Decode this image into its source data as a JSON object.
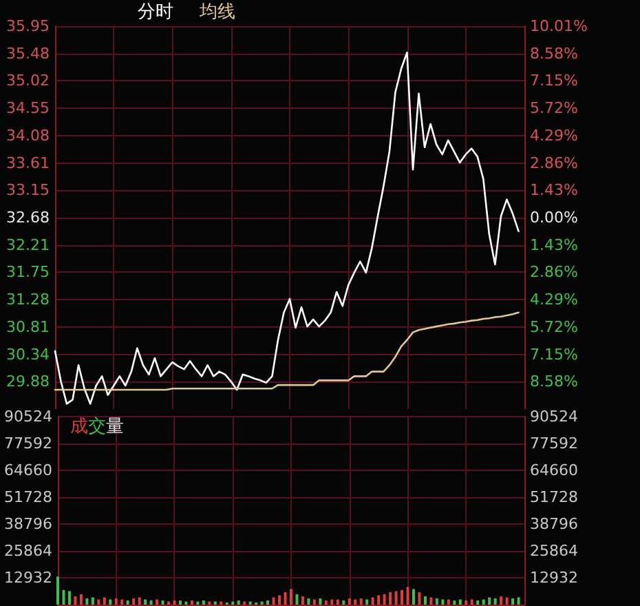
{
  "chart_data": [
    {
      "type": "line",
      "legend": "top left",
      "grid": true,
      "tick_labels": "y",
      "line_style": "solid",
      "categories": [
        null,
        null,
        null,
        null,
        null,
        null,
        null,
        null,
        null,
        null,
        null,
        null,
        null,
        null,
        null,
        null,
        null,
        null,
        null,
        null,
        null,
        null,
        null,
        null,
        null,
        null,
        null,
        null,
        null,
        null,
        null,
        null,
        null,
        null,
        null,
        null,
        null,
        null,
        null,
        null,
        null,
        null,
        null,
        null,
        null,
        null,
        null,
        null,
        null,
        null,
        null,
        null,
        null,
        null,
        null,
        null,
        null,
        null,
        null,
        null,
        null,
        null,
        null,
        null,
        null,
        null,
        null,
        null,
        null,
        null,
        null,
        null,
        null,
        null,
        null,
        null,
        null,
        null,
        null,
        null,
        null
      ],
      "ylim": [
        29.41,
        35.95
      ],
      "yticks": [
        35.95,
        35.48,
        35.02,
        34.55,
        34.08,
        33.61,
        33.15,
        32.68,
        32.21,
        31.75,
        31.28,
        30.81,
        30.34,
        29.88
      ],
      "y2lim": [
        -10.01,
        10.01
      ],
      "y2ticks": [
        {
          "value": 10.01,
          "label": "10.01%"
        },
        {
          "value": 8.58,
          "label": "8.58%"
        },
        {
          "value": 7.15,
          "label": "7.15%"
        },
        {
          "value": 5.72,
          "label": "5.72%"
        },
        {
          "value": 4.29,
          "label": "4.29%"
        },
        {
          "value": 2.86,
          "label": "2.86%"
        },
        {
          "value": 1.43,
          "label": "1.43%"
        },
        {
          "value": 0,
          "label": "0.00%"
        },
        {
          "value": -1.43,
          "label": "1.43%"
        },
        {
          "value": -2.86,
          "label": "2.86%"
        },
        {
          "value": -4.29,
          "label": "4.29%"
        },
        {
          "value": -5.72,
          "label": "5.72%"
        },
        {
          "value": -7.15,
          "label": "7.15%"
        },
        {
          "value": -8.58,
          "label": "8.58%"
        }
      ],
      "series": [
        {
          "name": "分时",
          "color": "#ffffff",
          "values": [
            30.4,
            29.88,
            29.5,
            29.57,
            30.16,
            29.76,
            29.5,
            29.81,
            29.97,
            29.65,
            29.81,
            29.97,
            29.81,
            30.05,
            30.45,
            30.16,
            30.0,
            30.28,
            29.97,
            30.09,
            30.21,
            30.14,
            30.09,
            30.23,
            30.09,
            29.97,
            30.16,
            29.97,
            30.05,
            30.0,
            29.88,
            29.74,
            30.0,
            29.97,
            29.93,
            29.9,
            29.86,
            29.97,
            30.59,
            31.06,
            31.29,
            30.8,
            31.15,
            30.82,
            30.94,
            30.82,
            30.92,
            31.06,
            31.41,
            31.17,
            31.53,
            31.74,
            31.93,
            31.74,
            32.16,
            32.7,
            33.22,
            33.81,
            34.82,
            35.22,
            35.5,
            33.5,
            34.8,
            33.88,
            34.28,
            33.93,
            33.76,
            34.0,
            33.81,
            33.62,
            33.76,
            33.86,
            33.72,
            33.34,
            32.4,
            31.88,
            32.7,
            32.99,
            32.75,
            32.45,
            null
          ]
        },
        {
          "name": "均线",
          "color": "#e0c890",
          "values": [
            29.74,
            29.74,
            29.74,
            29.74,
            29.74,
            29.74,
            29.74,
            29.74,
            29.74,
            29.74,
            29.74,
            29.74,
            29.74,
            29.74,
            29.74,
            29.74,
            29.74,
            29.74,
            29.74,
            29.74,
            29.76,
            29.76,
            29.76,
            29.76,
            29.76,
            29.76,
            29.76,
            29.76,
            29.76,
            29.76,
            29.76,
            29.76,
            29.76,
            29.76,
            29.76,
            29.76,
            29.76,
            29.76,
            29.82,
            29.82,
            29.82,
            29.82,
            29.82,
            29.82,
            29.82,
            29.9,
            29.9,
            29.9,
            29.9,
            29.9,
            29.9,
            29.97,
            29.97,
            29.97,
            30.05,
            30.05,
            30.05,
            30.16,
            30.3,
            30.48,
            30.59,
            30.72,
            30.76,
            30.78,
            30.8,
            30.82,
            30.84,
            30.86,
            30.87,
            30.89,
            30.9,
            30.92,
            30.93,
            30.95,
            30.96,
            30.98,
            30.99,
            31.01,
            31.03,
            31.06,
            null
          ]
        }
      ]
    },
    {
      "type": "bar",
      "legend": "top left",
      "grid": true,
      "tick_labels": "y",
      "categories": [
        null,
        null,
        null,
        null,
        null,
        null,
        null,
        null,
        null,
        null,
        null,
        null,
        null,
        null,
        null,
        null,
        null,
        null,
        null,
        null,
        null,
        null,
        null,
        null,
        null,
        null,
        null,
        null,
        null,
        null,
        null,
        null,
        null,
        null,
        null,
        null,
        null,
        null,
        null,
        null,
        null,
        null,
        null,
        null,
        null,
        null,
        null,
        null,
        null,
        null,
        null,
        null,
        null,
        null,
        null,
        null,
        null,
        null,
        null,
        null,
        null,
        null,
        null,
        null,
        null,
        null,
        null,
        null,
        null,
        null,
        null,
        null,
        null,
        null,
        null,
        null,
        null,
        null,
        null,
        null,
        null
      ],
      "ylim": [
        0,
        90524
      ],
      "yticks": [
        12932,
        25864,
        38796,
        51728,
        64660,
        77592,
        90524
      ],
      "y2lim": [
        0,
        90524
      ],
      "y2ticks": [
        12932,
        25864,
        38796,
        51728,
        64660,
        77592,
        90524
      ],
      "series": [
        {
          "name": "成交量",
          "color": "#e23b3b",
          "values": [
            13500,
            7000,
            6500,
            4000,
            5000,
            3000,
            3500,
            2500,
            3500,
            2500,
            3000,
            2500,
            2000,
            3000,
            3500,
            2500,
            2000,
            2500,
            2000,
            1500,
            2000,
            2000,
            1500,
            2000,
            1500,
            2000,
            1500,
            1500,
            1500,
            1000,
            1500,
            2000,
            1500,
            1500,
            1000,
            1500,
            2000,
            3500,
            4500,
            6000,
            7500,
            5000,
            4000,
            3000,
            2500,
            3000,
            2000,
            2500,
            2500,
            2000,
            3000,
            2500,
            3000,
            2500,
            3500,
            4500,
            5000,
            6000,
            6500,
            7000,
            8500,
            7500,
            6000,
            4000,
            3500,
            3000,
            2500,
            2500,
            2000,
            2500,
            2000,
            2500,
            2000,
            2500,
            3500,
            3000,
            4000,
            3500,
            3000,
            3500,
            null
          ],
          "colors": [
            "#3ec04a",
            "#3ec04a",
            "#3ec04a",
            "#e23b3b",
            "#e23b3b",
            "#3ec04a",
            "#3ec04a",
            "#e23b3b",
            "#e23b3b",
            "#3ec04a",
            "#e23b3b",
            "#e23b3b",
            "#3ec04a",
            "#e23b3b",
            "#e23b3b",
            "#3ec04a",
            "#3ec04a",
            "#e23b3b",
            "#3ec04a",
            "#e23b3b",
            "#e23b3b",
            "#3ec04a",
            "#3ec04a",
            "#e23b3b",
            "#3ec04a",
            "#3ec04a",
            "#e23b3b",
            "#3ec04a",
            "#e23b3b",
            "#3ec04a",
            "#3ec04a",
            "#3ec04a",
            "#e23b3b",
            "#3ec04a",
            "#3ec04a",
            "#3ec04a",
            "#3ec04a",
            "#e23b3b",
            "#e23b3b",
            "#e23b3b",
            "#e23b3b",
            "#3ec04a",
            "#e23b3b",
            "#3ec04a",
            "#e23b3b",
            "#3ec04a",
            "#e23b3b",
            "#e23b3b",
            "#e23b3b",
            "#3ec04a",
            "#e23b3b",
            "#e23b3b",
            "#e23b3b",
            "#3ec04a",
            "#e23b3b",
            "#e23b3b",
            "#e23b3b",
            "#e23b3b",
            "#e23b3b",
            "#e23b3b",
            "#e23b3b",
            "#3ec04a",
            "#e23b3b",
            "#3ec04a",
            "#e23b3b",
            "#3ec04a",
            "#3ec04a",
            "#e23b3b",
            "#3ec04a",
            "#3ec04a",
            "#e23b3b",
            "#e23b3b",
            "#3ec04a",
            "#3ec04a",
            "#3ec04a",
            "#3ec04a",
            "#e23b3b",
            "#e23b3b",
            "#3ec04a",
            "#3ec04a",
            "#3ec04a"
          ]
        }
      ]
    }
  ]
}
